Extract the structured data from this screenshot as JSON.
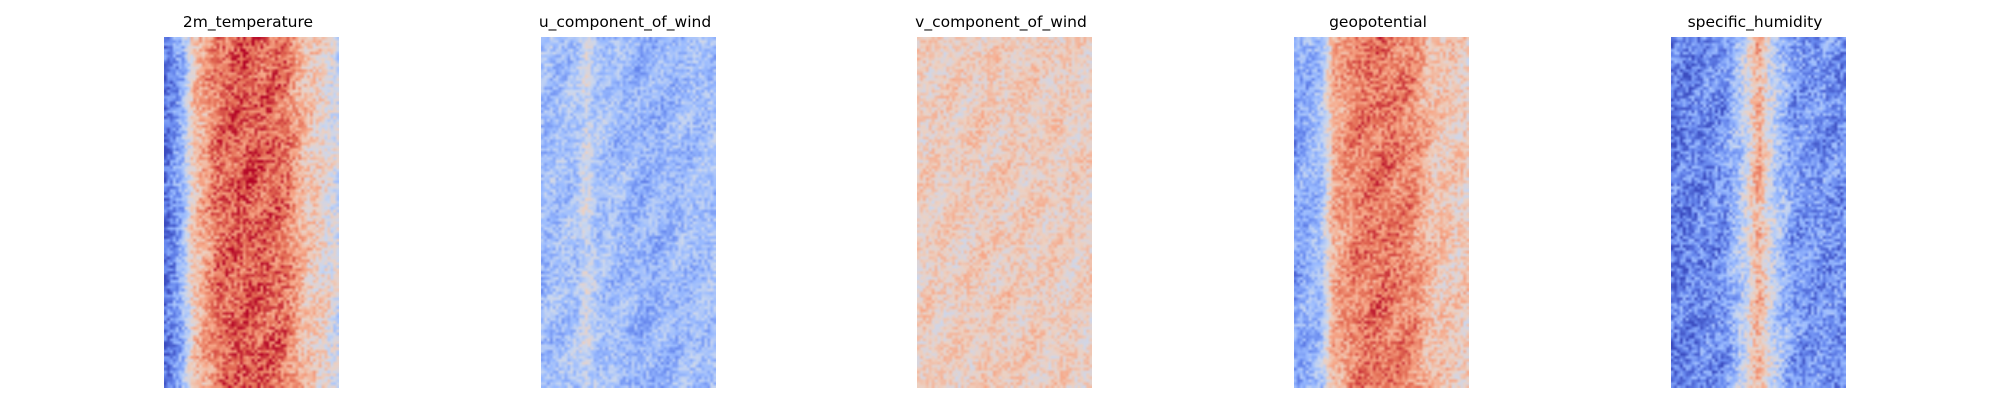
{
  "colormap": {
    "name": "coolwarm",
    "stops": [
      "#3b4cc0",
      "#6788ee",
      "#9abbff",
      "#c9d7f0",
      "#edd1c2",
      "#f7a889",
      "#e26952",
      "#b40426"
    ]
  },
  "chart_data": [
    {
      "type": "heatmap",
      "title": "2m_temperature",
      "axes": "off",
      "grid": {
        "columns": 60,
        "rows": 120
      },
      "column_profile": [
        {
          "x": 0.0,
          "level": 0.08
        },
        {
          "x": 0.1,
          "level": 0.28
        },
        {
          "x": 0.16,
          "level": 0.6
        },
        {
          "x": 0.3,
          "level": 0.83
        },
        {
          "x": 0.5,
          "level": 0.88
        },
        {
          "x": 0.7,
          "level": 0.82
        },
        {
          "x": 0.82,
          "level": 0.62
        },
        {
          "x": 0.92,
          "level": 0.55
        },
        {
          "x": 1.0,
          "level": 0.45
        }
      ],
      "noise": 0.13
    },
    {
      "type": "heatmap",
      "title": "u_component_of_wind",
      "axes": "off",
      "grid": {
        "columns": 60,
        "rows": 120
      },
      "column_profile": [
        {
          "x": 0.0,
          "level": 0.3
        },
        {
          "x": 0.2,
          "level": 0.34
        },
        {
          "x": 0.25,
          "level": 0.46
        },
        {
          "x": 0.32,
          "level": 0.34
        },
        {
          "x": 0.6,
          "level": 0.27
        },
        {
          "x": 1.0,
          "level": 0.33
        }
      ],
      "noise": 0.11
    },
    {
      "type": "heatmap",
      "title": "v_component_of_wind",
      "axes": "off",
      "grid": {
        "columns": 60,
        "rows": 120
      },
      "column_profile": [
        {
          "x": 0.0,
          "level": 0.57
        },
        {
          "x": 0.5,
          "level": 0.59
        },
        {
          "x": 1.0,
          "level": 0.57
        }
      ],
      "noise": 0.1
    },
    {
      "type": "heatmap",
      "title": "geopotential",
      "axes": "off",
      "grid": {
        "columns": 60,
        "rows": 120
      },
      "column_profile": [
        {
          "x": 0.0,
          "level": 0.22
        },
        {
          "x": 0.15,
          "level": 0.32
        },
        {
          "x": 0.22,
          "level": 0.68
        },
        {
          "x": 0.35,
          "level": 0.8
        },
        {
          "x": 0.5,
          "level": 0.82
        },
        {
          "x": 0.68,
          "level": 0.78
        },
        {
          "x": 0.8,
          "level": 0.62
        },
        {
          "x": 1.0,
          "level": 0.58
        }
      ],
      "noise": 0.12
    },
    {
      "type": "heatmap",
      "title": "specific_humidity",
      "axes": "off",
      "grid": {
        "columns": 60,
        "rows": 120
      },
      "column_profile": [
        {
          "x": 0.0,
          "level": 0.12
        },
        {
          "x": 0.3,
          "level": 0.18
        },
        {
          "x": 0.42,
          "level": 0.42
        },
        {
          "x": 0.5,
          "level": 0.7
        },
        {
          "x": 0.58,
          "level": 0.42
        },
        {
          "x": 0.7,
          "level": 0.2
        },
        {
          "x": 1.0,
          "level": 0.17
        }
      ],
      "noise": 0.14
    }
  ]
}
